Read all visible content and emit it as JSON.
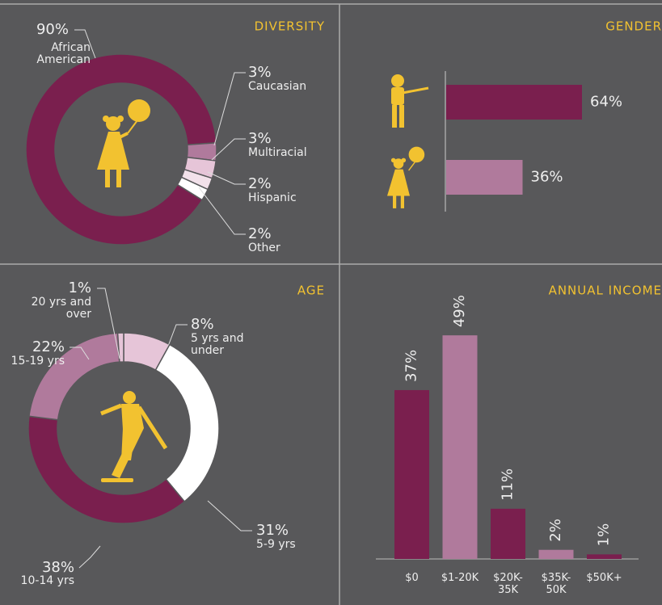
{
  "chart_data": [
    {
      "type": "donut",
      "title": "DIVERSITY",
      "categories": [
        "African American",
        "Caucasian",
        "Multiracial",
        "Hispanic",
        "Other"
      ],
      "values": [
        90,
        3,
        3,
        2,
        2
      ],
      "value_labels": [
        "90%",
        "3%",
        "3%",
        "2%",
        "2%"
      ],
      "colors": [
        "#7a1f4e",
        "#b07a9c",
        "#e6c5d8",
        "#f2e1ea",
        "#ffffff"
      ]
    },
    {
      "type": "hbar",
      "title": "GENDER",
      "categories": [
        null,
        null
      ],
      "values": [
        64,
        36
      ],
      "value_labels": [
        "64%",
        "36%"
      ],
      "colors": [
        "#7a1f4e",
        "#b07a9c"
      ]
    },
    {
      "type": "donut",
      "title": "AGE",
      "categories": [
        "5 yrs and under",
        "5-9 yrs",
        "10-14 yrs",
        "15-19 yrs",
        "20 yrs and over"
      ],
      "values": [
        8,
        31,
        38,
        22,
        1
      ],
      "value_labels": [
        "8%",
        "31%",
        "38%",
        "22%",
        "1%"
      ],
      "colors": [
        "#e6c5d8",
        "#ffffff",
        "#7a1f4e",
        "#b07a9c",
        "#e6c5d8"
      ]
    },
    {
      "type": "bar",
      "title": "ANNUAL INCOME",
      "categories": [
        "$0",
        "$1-20K",
        "$20K-35K",
        "$35K-50K",
        "$50K+"
      ],
      "values": [
        37,
        49,
        11,
        2,
        1
      ],
      "value_labels": [
        "37%",
        "49%",
        "11%",
        "2%",
        "1%"
      ],
      "colors": [
        "#7a1f4e",
        "#b07a9c",
        "#7a1f4e",
        "#b07a9c",
        "#7a1f4e"
      ]
    }
  ]
}
